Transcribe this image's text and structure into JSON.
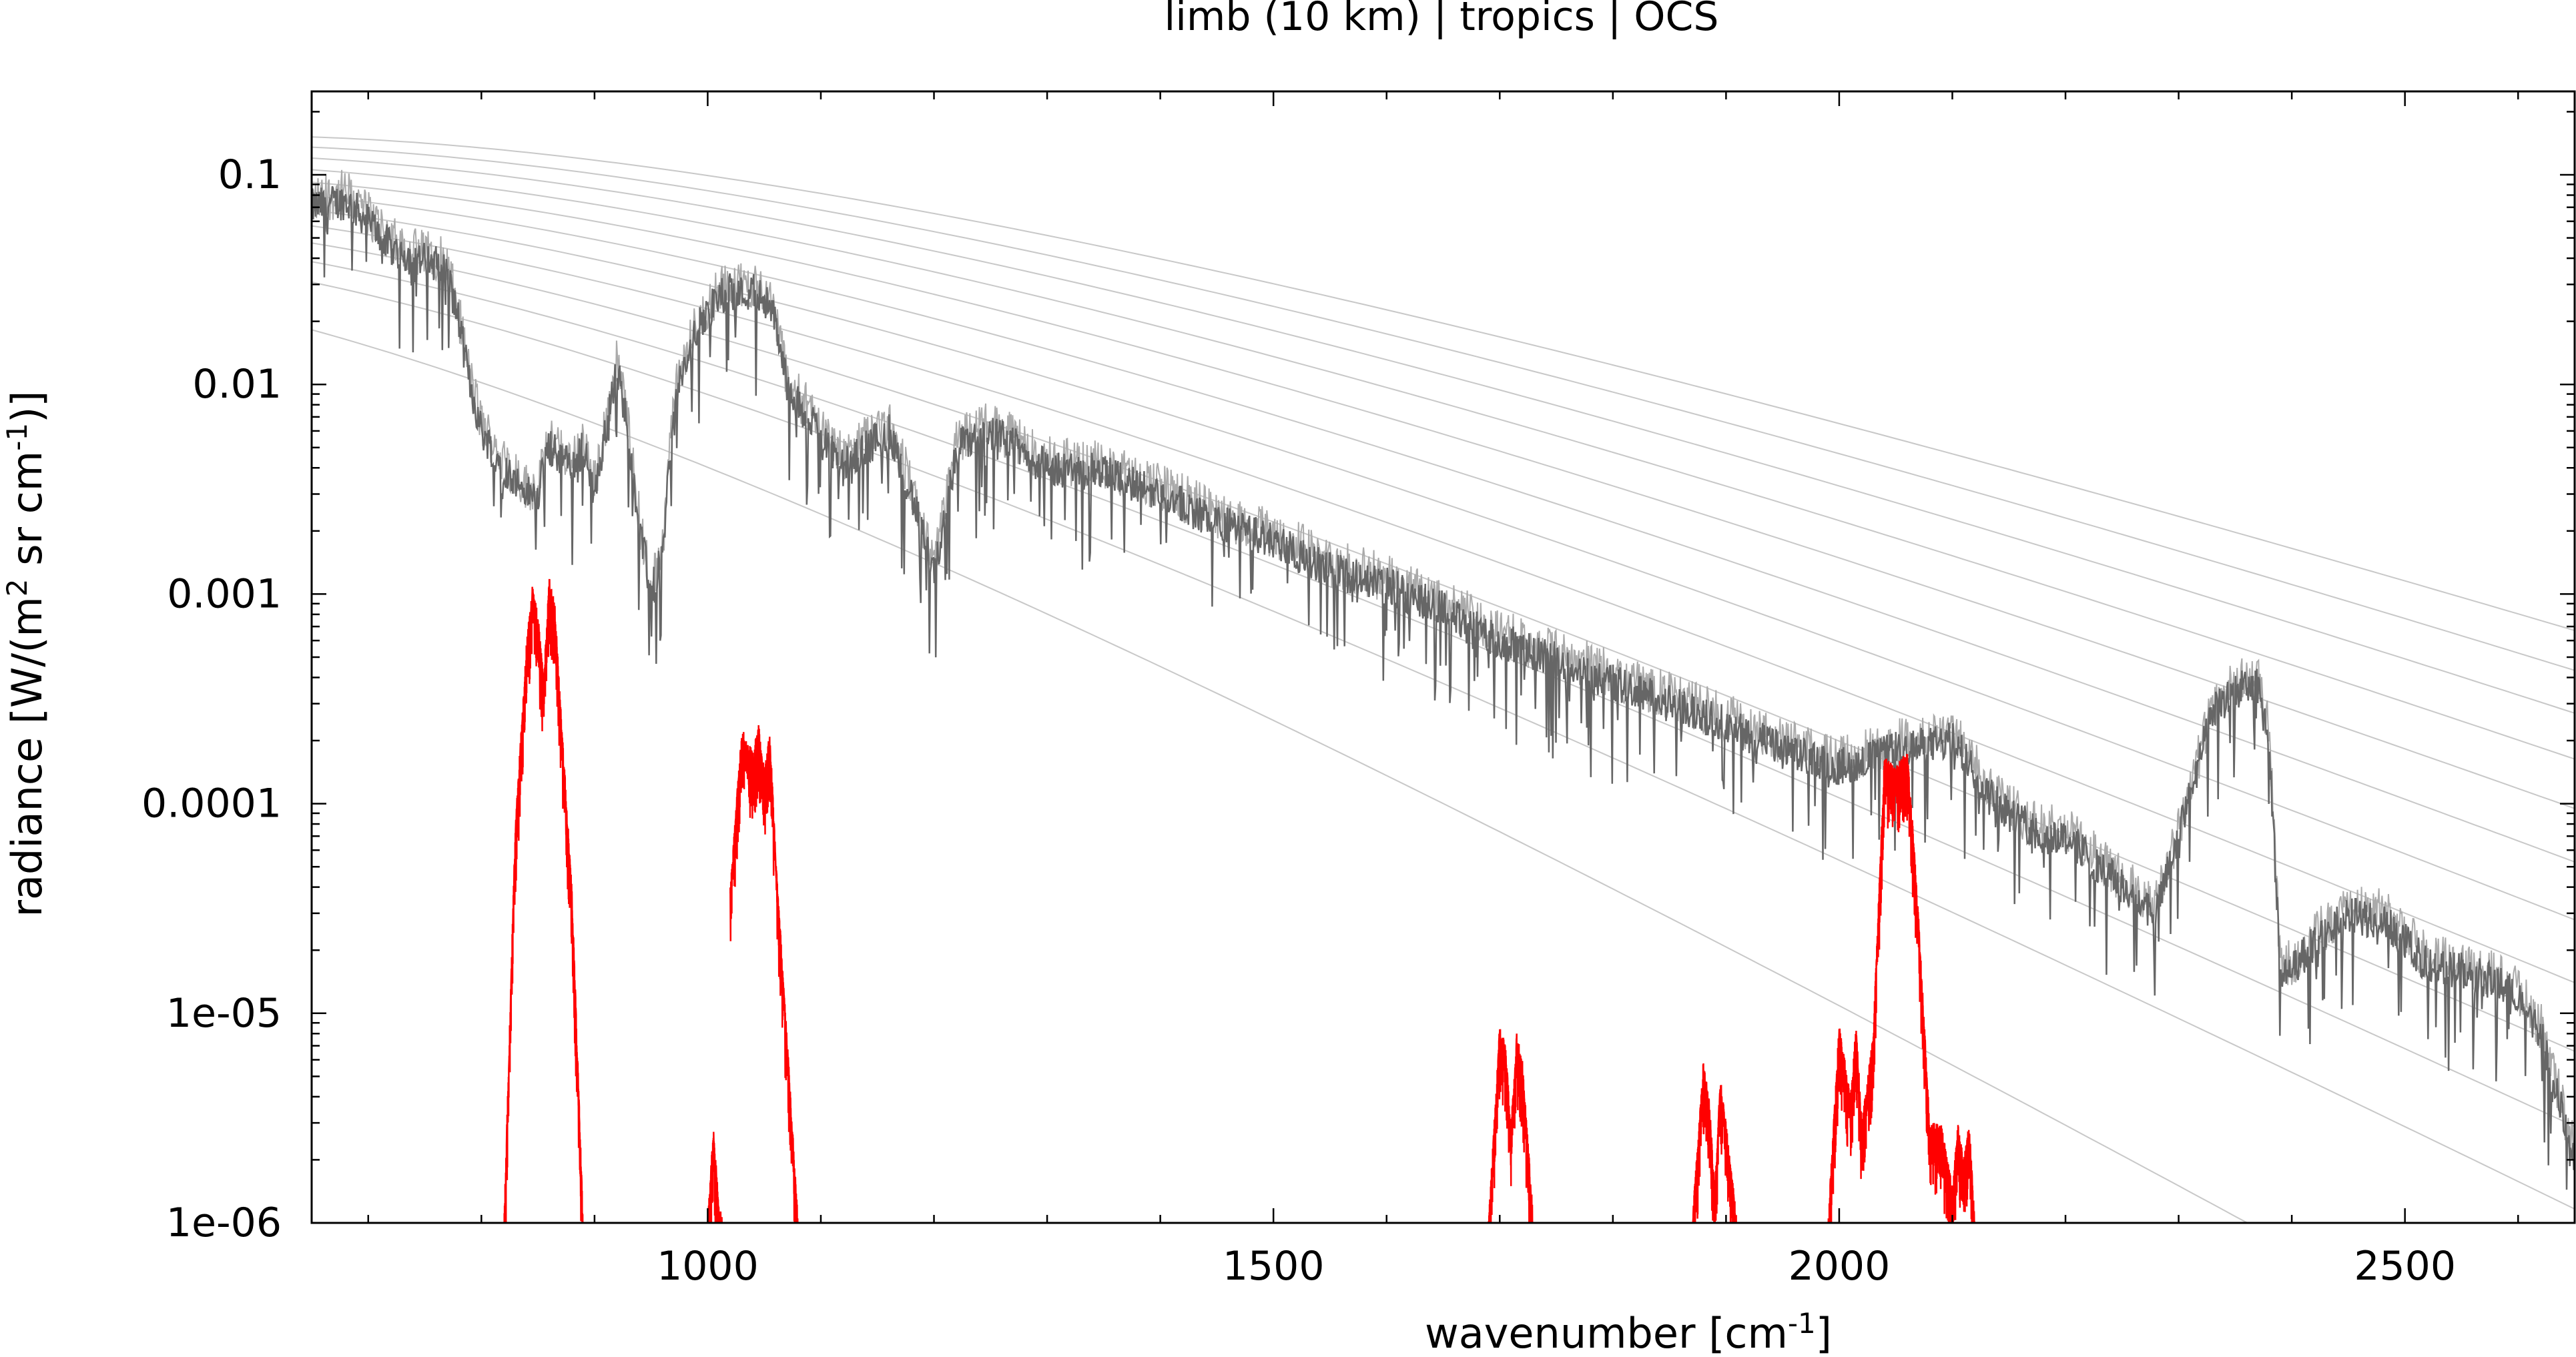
{
  "chart_data": {
    "type": "line",
    "title": "limb (10 km) | tropics | OCS",
    "xlabel": "wavenumber [cm",
    "xlabel_sup": "-1",
    "xlabel_end": "]",
    "ylabel_pre": "radiance [W/(m",
    "ylabel_sup1": "2",
    "ylabel_mid": " sr cm",
    "ylabel_sup2": "-1",
    "ylabel_end": ")]",
    "xlim": [
      650,
      2650
    ],
    "ylim": [
      1e-06,
      0.25
    ],
    "yscale": "log",
    "grid": false,
    "x_ticks": [
      {
        "value": 1000,
        "label": "1000"
      },
      {
        "value": 1500,
        "label": "1500"
      },
      {
        "value": 2000,
        "label": "2000"
      },
      {
        "value": 2500,
        "label": "2500"
      }
    ],
    "y_ticks": [
      {
        "value": 0.1,
        "label": "0.1"
      },
      {
        "value": 0.01,
        "label": "0.01"
      },
      {
        "value": 0.001,
        "label": "0.001"
      },
      {
        "value": 0.0001,
        "label": "0.0001"
      },
      {
        "value": 1e-05,
        "label": "1e-05"
      },
      {
        "value": 1e-06,
        "label": "1e-06"
      }
    ],
    "planck_temperatures_K": [
      180,
      200,
      210,
      220,
      230,
      240,
      250,
      260,
      270,
      280,
      290,
      300
    ],
    "colors": {
      "total_radiance": "#666666",
      "total_radiance_light": "#aaaaaa",
      "ocs_contribution": "#ff0000",
      "planck_curves": "#c8c8c8"
    },
    "series": [
      {
        "role": "total_radiance",
        "x": [
          650,
          680,
          700,
          720,
          740,
          760,
          770,
          780,
          790,
          800,
          820,
          840,
          850,
          860,
          870,
          880,
          890,
          900,
          910,
          920,
          930,
          940,
          950,
          960,
          970,
          980,
          990,
          1000,
          1010,
          1020,
          1030,
          1040,
          1050,
          1060,
          1070,
          1080,
          1100,
          1120,
          1140,
          1160,
          1180,
          1200,
          1220,
          1250,
          1300,
          1350,
          1400,
          1450,
          1500,
          1550,
          1600,
          1650,
          1700,
          1750,
          1800,
          1850,
          1900,
          1950,
          2000,
          2020,
          2050,
          2080,
          2100,
          2130,
          2150,
          2180,
          2200,
          2230,
          2250,
          2280,
          2300,
          2330,
          2350,
          2370,
          2380,
          2390,
          2400,
          2420,
          2450,
          2480,
          2500,
          2520,
          2550,
          2580,
          2600,
          2620,
          2650
        ],
        "y": [
          0.07,
          0.075,
          0.06,
          0.045,
          0.04,
          0.038,
          0.034,
          0.02,
          0.01,
          0.006,
          0.004,
          0.003,
          0.003,
          0.005,
          0.0045,
          0.004,
          0.005,
          0.003,
          0.006,
          0.012,
          0.006,
          0.002,
          0.001,
          0.0015,
          0.008,
          0.012,
          0.018,
          0.022,
          0.026,
          0.028,
          0.027,
          0.028,
          0.026,
          0.02,
          0.01,
          0.008,
          0.006,
          0.004,
          0.005,
          0.006,
          0.003,
          0.0012,
          0.005,
          0.006,
          0.004,
          0.0038,
          0.003,
          0.0022,
          0.0018,
          0.0013,
          0.0011,
          0.00085,
          0.0006,
          0.00048,
          0.00038,
          0.0003,
          0.00024,
          0.00018,
          0.00015,
          0.00016,
          0.00018,
          0.00019,
          0.0002,
          0.00012,
          9e-05,
          7e-05,
          7e-05,
          5e-05,
          4e-05,
          3e-05,
          7e-05,
          0.00027,
          0.00035,
          0.00036,
          0.0002,
          1.5e-05,
          1.6e-05,
          2.2e-05,
          2.9e-05,
          2.8e-05,
          2.2e-05,
          1.7e-05,
          1.6e-05,
          1.4e-05,
          1.2e-05,
          8e-06,
          2e-06
        ]
      },
      {
        "role": "ocs_contribution",
        "x": [
          820,
          830,
          840,
          845,
          850,
          855,
          860,
          865,
          870,
          880,
          890,
          1000,
          1005,
          1010,
          1015,
          1020,
          1030,
          1040,
          1045,
          1050,
          1055,
          1060,
          1070,
          1080,
          1690,
          1700,
          1705,
          1710,
          1715,
          1720,
          1730,
          1870,
          1880,
          1885,
          1890,
          1895,
          1900,
          1910,
          1990,
          2000,
          2010,
          2015,
          2020,
          2030,
          2040,
          2050,
          2060,
          2065,
          2070,
          2080,
          2090,
          2100,
          2105,
          2110,
          2115,
          2120
        ],
        "y": [
          1e-06,
          8e-05,
          0.0006,
          0.0011,
          0.0008,
          0.0004,
          0.0012,
          0.0009,
          0.0003,
          4e-05,
          1e-06,
          1e-06,
          3e-06,
          1.2e-06,
          1e-06,
          4e-05,
          0.00023,
          0.00018,
          0.00024,
          0.00015,
          0.00022,
          6e-05,
          8e-06,
          1e-06,
          1e-06,
          9e-06,
          7e-06,
          3e-06,
          8e-06,
          6e-06,
          1e-06,
          1e-06,
          6e-06,
          4e-06,
          1.5e-06,
          5e-06,
          3e-06,
          1e-06,
          1e-06,
          9e-06,
          4e-06,
          9e-06,
          3e-06,
          8e-06,
          0.00017,
          0.00015,
          0.00018,
          8e-05,
          3e-05,
          3e-06,
          3e-06,
          1.5e-06,
          3e-06,
          2e-06,
          3e-06,
          1e-06
        ]
      }
    ]
  }
}
